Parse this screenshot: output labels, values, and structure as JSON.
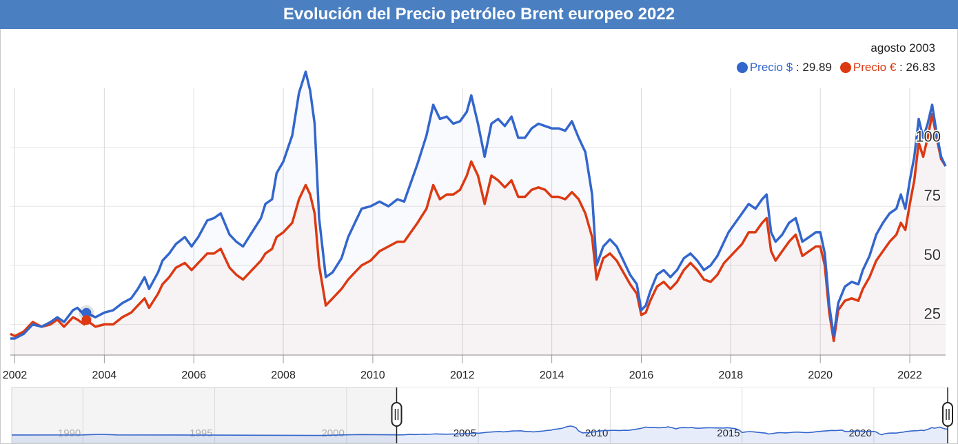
{
  "title": "Evolución del Precio petróleo Brent europeo 2022",
  "legend": {
    "date": "agosto 2003",
    "usd_name": "Precio $",
    "usd_value": "29.89",
    "eur_name": "Precio €",
    "eur_value": "26.83",
    "separator": " : "
  },
  "colors": {
    "usd": "#3366cc",
    "eur": "#dc3912",
    "grid": "#e3e3e3",
    "title_bg": "#4a7fc1"
  },
  "chart_data": {
    "type": "line",
    "x_start": 2001.9,
    "x_end": 2022.8,
    "ylim": [
      12,
      125
    ],
    "y_ticks": [
      25,
      50,
      75,
      100
    ],
    "x_ticks": [
      2002,
      2004,
      2006,
      2008,
      2010,
      2012,
      2014,
      2016,
      2018,
      2020,
      2022
    ],
    "highlight": {
      "x": 2003.6,
      "usd": 29.89,
      "eur": 26.83
    },
    "series": [
      {
        "name": "Precio $",
        "color": "#3366cc",
        "points": [
          [
            2001.9,
            19
          ],
          [
            2002.0,
            19
          ],
          [
            2002.2,
            21
          ],
          [
            2002.4,
            25
          ],
          [
            2002.6,
            24
          ],
          [
            2002.8,
            26
          ],
          [
            2002.95,
            28
          ],
          [
            2003.1,
            26
          ],
          [
            2003.3,
            31
          ],
          [
            2003.4,
            32
          ],
          [
            2003.55,
            29
          ],
          [
            2003.6,
            29.9
          ],
          [
            2003.8,
            28
          ],
          [
            2004.0,
            30
          ],
          [
            2004.2,
            31
          ],
          [
            2004.4,
            34
          ],
          [
            2004.6,
            36
          ],
          [
            2004.75,
            40
          ],
          [
            2004.9,
            45
          ],
          [
            2005.0,
            40
          ],
          [
            2005.2,
            47
          ],
          [
            2005.3,
            52
          ],
          [
            2005.45,
            55
          ],
          [
            2005.6,
            59
          ],
          [
            2005.8,
            62
          ],
          [
            2005.95,
            58
          ],
          [
            2006.1,
            62
          ],
          [
            2006.3,
            69
          ],
          [
            2006.45,
            70
          ],
          [
            2006.6,
            72
          ],
          [
            2006.8,
            63
          ],
          [
            2006.95,
            60
          ],
          [
            2007.1,
            58
          ],
          [
            2007.3,
            64
          ],
          [
            2007.5,
            70
          ],
          [
            2007.6,
            76
          ],
          [
            2007.75,
            78
          ],
          [
            2007.85,
            89
          ],
          [
            2008.0,
            94
          ],
          [
            2008.2,
            105
          ],
          [
            2008.35,
            123
          ],
          [
            2008.5,
            132
          ],
          [
            2008.6,
            124
          ],
          [
            2008.7,
            110
          ],
          [
            2008.8,
            70
          ],
          [
            2008.95,
            45
          ],
          [
            2009.1,
            47
          ],
          [
            2009.3,
            53
          ],
          [
            2009.45,
            62
          ],
          [
            2009.6,
            68
          ],
          [
            2009.75,
            74
          ],
          [
            2009.95,
            75
          ],
          [
            2010.15,
            77
          ],
          [
            2010.25,
            76
          ],
          [
            2010.35,
            75
          ],
          [
            2010.55,
            78
          ],
          [
            2010.7,
            77
          ],
          [
            2010.85,
            85
          ],
          [
            2011.0,
            93
          ],
          [
            2011.2,
            105
          ],
          [
            2011.35,
            118
          ],
          [
            2011.5,
            112
          ],
          [
            2011.65,
            113
          ],
          [
            2011.8,
            110
          ],
          [
            2011.95,
            111
          ],
          [
            2012.1,
            115
          ],
          [
            2012.2,
            122
          ],
          [
            2012.35,
            110
          ],
          [
            2012.5,
            96
          ],
          [
            2012.65,
            110
          ],
          [
            2012.8,
            112
          ],
          [
            2012.95,
            109
          ],
          [
            2013.1,
            113
          ],
          [
            2013.25,
            104
          ],
          [
            2013.4,
            104
          ],
          [
            2013.55,
            108
          ],
          [
            2013.7,
            110
          ],
          [
            2013.85,
            109
          ],
          [
            2014.0,
            108
          ],
          [
            2014.15,
            108
          ],
          [
            2014.3,
            107
          ],
          [
            2014.45,
            111
          ],
          [
            2014.6,
            104
          ],
          [
            2014.75,
            98
          ],
          [
            2014.9,
            80
          ],
          [
            2015.0,
            50
          ],
          [
            2015.15,
            58
          ],
          [
            2015.3,
            61
          ],
          [
            2015.45,
            58
          ],
          [
            2015.6,
            52
          ],
          [
            2015.75,
            46
          ],
          [
            2015.9,
            42
          ],
          [
            2016.0,
            31
          ],
          [
            2016.1,
            33
          ],
          [
            2016.2,
            39
          ],
          [
            2016.35,
            46
          ],
          [
            2016.5,
            48
          ],
          [
            2016.65,
            45
          ],
          [
            2016.8,
            48
          ],
          [
            2016.95,
            53
          ],
          [
            2017.1,
            55
          ],
          [
            2017.25,
            52
          ],
          [
            2017.4,
            48
          ],
          [
            2017.55,
            50
          ],
          [
            2017.7,
            54
          ],
          [
            2017.85,
            60
          ],
          [
            2017.95,
            64
          ],
          [
            2018.1,
            68
          ],
          [
            2018.25,
            72
          ],
          [
            2018.4,
            76
          ],
          [
            2018.55,
            74
          ],
          [
            2018.7,
            78
          ],
          [
            2018.8,
            80
          ],
          [
            2018.9,
            64
          ],
          [
            2019.0,
            60
          ],
          [
            2019.15,
            63
          ],
          [
            2019.3,
            68
          ],
          [
            2019.45,
            70
          ],
          [
            2019.6,
            60
          ],
          [
            2019.75,
            62
          ],
          [
            2019.9,
            64
          ],
          [
            2020.0,
            64
          ],
          [
            2020.1,
            55
          ],
          [
            2020.2,
            33
          ],
          [
            2020.3,
            20
          ],
          [
            2020.4,
            34
          ],
          [
            2020.55,
            41
          ],
          [
            2020.7,
            43
          ],
          [
            2020.85,
            42
          ],
          [
            2020.95,
            48
          ],
          [
            2021.1,
            54
          ],
          [
            2021.25,
            63
          ],
          [
            2021.4,
            68
          ],
          [
            2021.55,
            72
          ],
          [
            2021.7,
            74
          ],
          [
            2021.8,
            80
          ],
          [
            2021.9,
            74
          ],
          [
            2022.0,
            86
          ],
          [
            2022.1,
            96
          ],
          [
            2022.2,
            112
          ],
          [
            2022.3,
            104
          ],
          [
            2022.4,
            110
          ],
          [
            2022.5,
            118
          ],
          [
            2022.6,
            106
          ],
          [
            2022.7,
            96
          ],
          [
            2022.8,
            92
          ]
        ]
      },
      {
        "name": "Precio €",
        "color": "#dc3912",
        "points": [
          [
            2001.9,
            21
          ],
          [
            2002.0,
            20
          ],
          [
            2002.2,
            22
          ],
          [
            2002.4,
            26
          ],
          [
            2002.6,
            24
          ],
          [
            2002.8,
            25
          ],
          [
            2002.95,
            27
          ],
          [
            2003.1,
            24
          ],
          [
            2003.3,
            28
          ],
          [
            2003.4,
            27
          ],
          [
            2003.55,
            25
          ],
          [
            2003.6,
            26.8
          ],
          [
            2003.8,
            24
          ],
          [
            2004.0,
            25
          ],
          [
            2004.2,
            25
          ],
          [
            2004.4,
            28
          ],
          [
            2004.6,
            30
          ],
          [
            2004.75,
            33
          ],
          [
            2004.9,
            36
          ],
          [
            2005.0,
            32
          ],
          [
            2005.2,
            38
          ],
          [
            2005.3,
            42
          ],
          [
            2005.45,
            45
          ],
          [
            2005.6,
            49
          ],
          [
            2005.8,
            51
          ],
          [
            2005.95,
            48
          ],
          [
            2006.1,
            51
          ],
          [
            2006.3,
            55
          ],
          [
            2006.45,
            55
          ],
          [
            2006.6,
            57
          ],
          [
            2006.8,
            49
          ],
          [
            2006.95,
            46
          ],
          [
            2007.1,
            44
          ],
          [
            2007.3,
            48
          ],
          [
            2007.5,
            52
          ],
          [
            2007.6,
            55
          ],
          [
            2007.75,
            57
          ],
          [
            2007.85,
            62
          ],
          [
            2008.0,
            64
          ],
          [
            2008.2,
            68
          ],
          [
            2008.35,
            78
          ],
          [
            2008.5,
            84
          ],
          [
            2008.6,
            80
          ],
          [
            2008.7,
            72
          ],
          [
            2008.8,
            50
          ],
          [
            2008.95,
            33
          ],
          [
            2009.1,
            36
          ],
          [
            2009.3,
            40
          ],
          [
            2009.45,
            44
          ],
          [
            2009.6,
            47
          ],
          [
            2009.75,
            50
          ],
          [
            2009.95,
            52
          ],
          [
            2010.15,
            56
          ],
          [
            2010.25,
            57
          ],
          [
            2010.35,
            58
          ],
          [
            2010.55,
            60
          ],
          [
            2010.7,
            60
          ],
          [
            2010.85,
            64
          ],
          [
            2011.0,
            68
          ],
          [
            2011.2,
            74
          ],
          [
            2011.35,
            84
          ],
          [
            2011.5,
            78
          ],
          [
            2011.65,
            80
          ],
          [
            2011.8,
            80
          ],
          [
            2011.95,
            82
          ],
          [
            2012.1,
            88
          ],
          [
            2012.2,
            94
          ],
          [
            2012.35,
            88
          ],
          [
            2012.5,
            76
          ],
          [
            2012.65,
            88
          ],
          [
            2012.8,
            86
          ],
          [
            2012.95,
            83
          ],
          [
            2013.1,
            86
          ],
          [
            2013.25,
            79
          ],
          [
            2013.4,
            79
          ],
          [
            2013.55,
            82
          ],
          [
            2013.7,
            83
          ],
          [
            2013.85,
            82
          ],
          [
            2014.0,
            79
          ],
          [
            2014.15,
            79
          ],
          [
            2014.3,
            78
          ],
          [
            2014.45,
            81
          ],
          [
            2014.6,
            78
          ],
          [
            2014.75,
            72
          ],
          [
            2014.9,
            62
          ],
          [
            2015.0,
            44
          ],
          [
            2015.15,
            53
          ],
          [
            2015.3,
            55
          ],
          [
            2015.45,
            52
          ],
          [
            2015.6,
            47
          ],
          [
            2015.75,
            42
          ],
          [
            2015.9,
            38
          ],
          [
            2016.0,
            29
          ],
          [
            2016.1,
            30
          ],
          [
            2016.2,
            35
          ],
          [
            2016.35,
            41
          ],
          [
            2016.5,
            43
          ],
          [
            2016.65,
            40
          ],
          [
            2016.8,
            43
          ],
          [
            2016.95,
            48
          ],
          [
            2017.1,
            51
          ],
          [
            2017.25,
            48
          ],
          [
            2017.4,
            44
          ],
          [
            2017.55,
            43
          ],
          [
            2017.7,
            46
          ],
          [
            2017.85,
            51
          ],
          [
            2017.95,
            53
          ],
          [
            2018.1,
            56
          ],
          [
            2018.25,
            59
          ],
          [
            2018.4,
            64
          ],
          [
            2018.55,
            64
          ],
          [
            2018.7,
            68
          ],
          [
            2018.8,
            70
          ],
          [
            2018.9,
            56
          ],
          [
            2019.0,
            52
          ],
          [
            2019.15,
            56
          ],
          [
            2019.3,
            60
          ],
          [
            2019.45,
            63
          ],
          [
            2019.6,
            54
          ],
          [
            2019.75,
            56
          ],
          [
            2019.9,
            58
          ],
          [
            2020.0,
            58
          ],
          [
            2020.1,
            50
          ],
          [
            2020.2,
            30
          ],
          [
            2020.3,
            18
          ],
          [
            2020.4,
            31
          ],
          [
            2020.55,
            35
          ],
          [
            2020.7,
            36
          ],
          [
            2020.85,
            35
          ],
          [
            2020.95,
            40
          ],
          [
            2021.1,
            45
          ],
          [
            2021.25,
            52
          ],
          [
            2021.4,
            56
          ],
          [
            2021.55,
            60
          ],
          [
            2021.7,
            63
          ],
          [
            2021.8,
            68
          ],
          [
            2021.9,
            65
          ],
          [
            2022.0,
            76
          ],
          [
            2022.1,
            86
          ],
          [
            2022.2,
            102
          ],
          [
            2022.3,
            96
          ],
          [
            2022.4,
            104
          ],
          [
            2022.5,
            114
          ],
          [
            2022.6,
            104
          ],
          [
            2022.7,
            95
          ],
          [
            2022.8,
            92
          ]
        ]
      }
    ],
    "navigator": {
      "x_start": 1987.3,
      "x_end": 2022.8,
      "labels": [
        "1990",
        "1995",
        "2000",
        "2005",
        "2010",
        "2015",
        "2020"
      ],
      "label_years": [
        1990,
        1995,
        2000,
        2005,
        2010,
        2015,
        2020
      ],
      "range": [
        2001.9,
        2022.8
      ]
    }
  }
}
